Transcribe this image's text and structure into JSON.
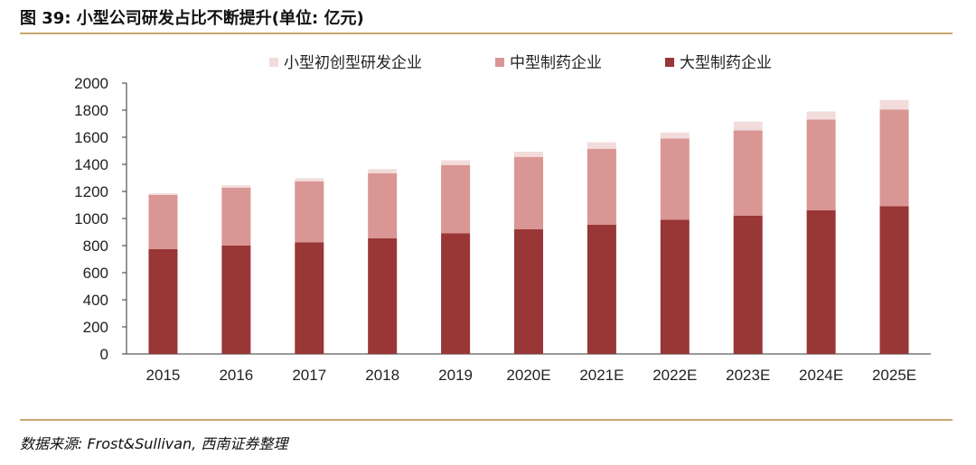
{
  "header": {
    "title": "图 39: 小型公司研发占比不断提升(单位: 亿元)"
  },
  "footer": {
    "source": "数据来源: Frost&Sullivan, 西南证券整理"
  },
  "chart_data": {
    "type": "bar",
    "stacked": true,
    "title": "",
    "xlabel": "",
    "ylabel": "",
    "ylim": [
      0,
      2000
    ],
    "yticks": [
      0,
      200,
      400,
      600,
      800,
      1000,
      1200,
      1400,
      1600,
      1800,
      2000
    ],
    "categories": [
      "2015",
      "2016",
      "2017",
      "2018",
      "2019",
      "2020E",
      "2021E",
      "2022E",
      "2023E",
      "2024E",
      "2025E"
    ],
    "series": [
      {
        "name": "大型制药企业",
        "color": "#993636",
        "values": [
          775,
          800,
          825,
          855,
          890,
          920,
          955,
          990,
          1020,
          1060,
          1090
        ]
      },
      {
        "name": "中型制药企业",
        "color": "#d99694",
        "values": [
          400,
          428,
          450,
          480,
          505,
          535,
          560,
          600,
          630,
          670,
          715
        ]
      },
      {
        "name": "小型初创型研发企业",
        "color": "#f2dcdb",
        "values": [
          10,
          17,
          22,
          30,
          35,
          38,
          48,
          45,
          65,
          60,
          70
        ]
      }
    ],
    "legend": {
      "placement": "top",
      "order": [
        "小型初创型研发企业",
        "中型制药企业",
        "大型制药企业"
      ]
    },
    "grid": false
  }
}
